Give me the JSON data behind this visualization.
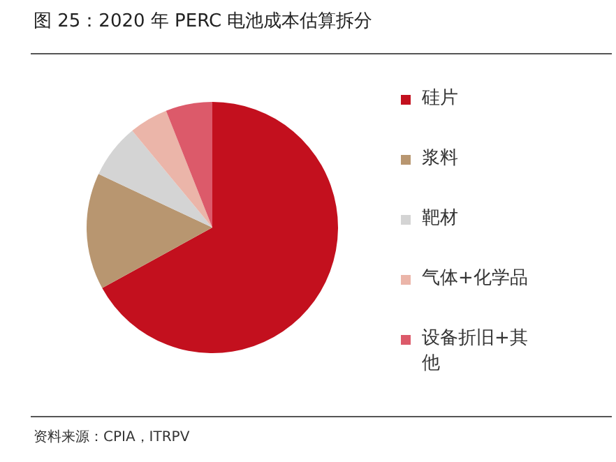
{
  "chart_data": {
    "type": "pie",
    "title": "图 25：2020 年 PERC 电池成本估算拆分",
    "categories": [
      "硅片",
      "浆料",
      "靶材",
      "气体+化学品",
      "设备折旧+其他"
    ],
    "values": [
      67,
      15,
      7,
      5,
      6
    ],
    "colors": [
      "#c3101e",
      "#b89670",
      "#d4d4d4",
      "#ebb5a9",
      "#dc5a6a"
    ],
    "legend": "right",
    "annotations": [
      "资料来源：CPIA，ITRPV"
    ]
  }
}
